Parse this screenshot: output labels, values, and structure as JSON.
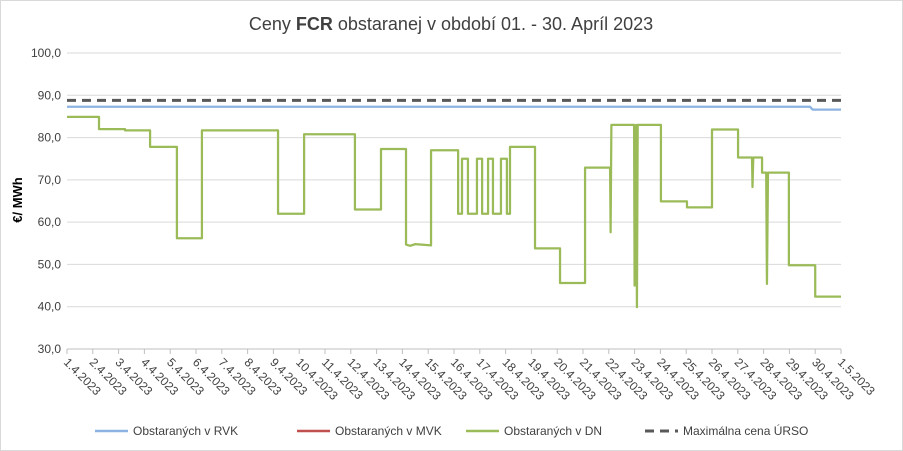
{
  "chart_data": {
    "type": "line",
    "title": [
      "Ceny ",
      "FCR",
      " obstaranej v období 01. - 30. Apríl 2023"
    ],
    "ylabel": "€/ MWh",
    "xlim": [
      0,
      30
    ],
    "xticks": [
      {
        "value": 0,
        "label": "1.4.2023"
      },
      {
        "value": 1,
        "label": "2.4.2023"
      },
      {
        "value": 2,
        "label": "3.4.2023"
      },
      {
        "value": 3,
        "label": "4.4.2023"
      },
      {
        "value": 4,
        "label": "5.4.2023"
      },
      {
        "value": 5,
        "label": "6.4.2023"
      },
      {
        "value": 6,
        "label": "7.4.2023"
      },
      {
        "value": 7,
        "label": "8.4.2023"
      },
      {
        "value": 8,
        "label": "9.4.2023"
      },
      {
        "value": 9,
        "label": "10.4.2023"
      },
      {
        "value": 10,
        "label": "11.4.2023"
      },
      {
        "value": 11,
        "label": "12.4.2023"
      },
      {
        "value": 12,
        "label": "13.4.2023"
      },
      {
        "value": 13,
        "label": "14.4.2023"
      },
      {
        "value": 14,
        "label": "15.4.2023"
      },
      {
        "value": 15,
        "label": "16.4.2023"
      },
      {
        "value": 16,
        "label": "17.4.2023"
      },
      {
        "value": 17,
        "label": "18.4.2023"
      },
      {
        "value": 18,
        "label": "19.4.2023"
      },
      {
        "value": 19,
        "label": "20.4.2023"
      },
      {
        "value": 20,
        "label": "21.4.2023"
      },
      {
        "value": 21,
        "label": "22.4.2023"
      },
      {
        "value": 22,
        "label": "23.4.2023"
      },
      {
        "value": 23,
        "label": "24.4.2023"
      },
      {
        "value": 24,
        "label": "25.4.2023"
      },
      {
        "value": 25,
        "label": "26.4.2023"
      },
      {
        "value": 26,
        "label": "27.4.2023"
      },
      {
        "value": 27,
        "label": "28.4.2023"
      },
      {
        "value": 28,
        "label": "29.4.2023"
      },
      {
        "value": 29,
        "label": "30.4.2023"
      },
      {
        "value": 30,
        "label": "1.5.2023"
      }
    ],
    "ylim": [
      30,
      100
    ],
    "yticks": [
      {
        "value": 30,
        "label": "30,0"
      },
      {
        "value": 40,
        "label": "40,0"
      },
      {
        "value": 50,
        "label": "50,0"
      },
      {
        "value": 60,
        "label": "60,0"
      },
      {
        "value": 70,
        "label": "70,0"
      },
      {
        "value": 80,
        "label": "80,0"
      },
      {
        "value": 90,
        "label": "90,0"
      },
      {
        "value": 100,
        "label": "100,0"
      }
    ],
    "grid": true,
    "legend": "bottom",
    "series": [
      {
        "name": "Obstaraných v RVK",
        "color": "#8db3e2",
        "dashed": false,
        "x": [
          0,
          28.8,
          28.9,
          30
        ],
        "values": [
          87.3,
          87.3,
          86.6,
          86.6
        ]
      },
      {
        "name": "Obstaraných v MVK",
        "color": "#c0504d",
        "dashed": false,
        "x": [],
        "values": []
      },
      {
        "name": "Obstaraných v DN",
        "color": "#9bbb59",
        "dashed": false,
        "x": [
          0,
          1.24,
          1.24,
          2.25,
          2.25,
          3.22,
          3.22,
          4.26,
          4.26,
          5.23,
          5.23,
          8.18,
          8.18,
          9.19,
          9.19,
          11.16,
          11.16,
          12.17,
          12.17,
          13.14,
          13.14,
          13.3,
          13.5,
          14.11,
          14.11,
          15.16,
          15.16,
          15.31,
          15.31,
          15.54,
          15.54,
          15.89,
          15.89,
          16.09,
          16.09,
          16.32,
          16.32,
          16.51,
          16.51,
          16.82,
          16.82,
          17.05,
          17.05,
          17.17,
          17.17,
          18.14,
          18.14,
          19.11,
          19.11,
          20.08,
          20.08,
          21.05,
          21.07,
          21.1,
          21.98,
          22.0,
          22.03,
          22.06,
          22.09,
          22.12,
          23.02,
          23.02,
          24.03,
          24.03,
          25.0,
          25.0,
          26.01,
          26.01,
          26.55,
          26.57,
          26.6,
          26.94,
          26.94,
          27.1,
          27.13,
          27.17,
          27.98,
          27.98,
          29.0,
          29.0,
          30
        ],
        "values": [
          84.9,
          84.9,
          82.0,
          82.0,
          81.7,
          81.7,
          77.8,
          77.8,
          56.2,
          56.2,
          81.7,
          81.7,
          62.0,
          62.0,
          80.8,
          80.8,
          63.0,
          63.0,
          77.3,
          77.3,
          54.7,
          54.4,
          54.8,
          54.5,
          77.0,
          77.0,
          62.0,
          62.0,
          75.0,
          75.0,
          62.0,
          62.0,
          75.0,
          75.0,
          62.0,
          62.0,
          75.0,
          75.0,
          62.0,
          62.0,
          75.0,
          75.0,
          62.0,
          62.0,
          77.8,
          77.8,
          53.8,
          53.8,
          45.6,
          45.6,
          72.9,
          72.9,
          57.6,
          83.0,
          83.0,
          45.0,
          69.0,
          83.0,
          39.9,
          83.0,
          83.0,
          64.9,
          64.9,
          63.5,
          63.5,
          81.9,
          81.9,
          75.3,
          75.3,
          68.3,
          75.3,
          75.3,
          71.7,
          71.7,
          45.4,
          71.7,
          71.7,
          49.8,
          49.8,
          42.4,
          42.4
        ]
      },
      {
        "name": "Maximálna cena ÚRSO",
        "color": "#595959",
        "dashed": true,
        "x": [
          0,
          30
        ],
        "values": [
          88.8,
          88.8
        ]
      }
    ]
  }
}
